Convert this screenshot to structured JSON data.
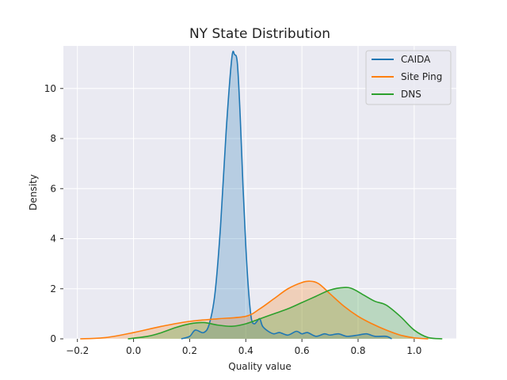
{
  "chart_data": {
    "type": "area",
    "title": "NY State Distribution",
    "xlabel": "Quality value",
    "ylabel": "Density",
    "xlim": [
      -0.25,
      1.15
    ],
    "ylim": [
      0,
      11.7
    ],
    "xticks": [
      -0.2,
      0.0,
      0.2,
      0.4,
      0.6,
      0.8,
      1.0
    ],
    "xtick_labels": [
      "−0.2",
      "0.0",
      "0.2",
      "0.4",
      "0.6",
      "0.8",
      "1.0"
    ],
    "yticks": [
      0,
      2,
      4,
      6,
      8,
      10
    ],
    "ytick_labels": [
      "0",
      "2",
      "4",
      "6",
      "8",
      "10"
    ],
    "grid": true,
    "background": "#eaeaf2",
    "legend_position": "top-right",
    "series": [
      {
        "name": "CAIDA",
        "color": "#1f77b4",
        "x": [
          0.17,
          0.2,
          0.22,
          0.25,
          0.27,
          0.29,
          0.31,
          0.33,
          0.35,
          0.36,
          0.37,
          0.38,
          0.39,
          0.4,
          0.41,
          0.42,
          0.43,
          0.44,
          0.45,
          0.46,
          0.48,
          0.5,
          0.52,
          0.55,
          0.58,
          0.6,
          0.62,
          0.65,
          0.68,
          0.7,
          0.73,
          0.76,
          0.8,
          0.83,
          0.86,
          0.9,
          0.92
        ],
        "y": [
          0.0,
          0.1,
          0.35,
          0.25,
          0.6,
          1.8,
          4.5,
          8.3,
          11.2,
          11.35,
          11.0,
          8.9,
          6.1,
          3.7,
          1.9,
          0.8,
          0.6,
          0.7,
          0.8,
          0.5,
          0.3,
          0.2,
          0.25,
          0.15,
          0.3,
          0.2,
          0.25,
          0.1,
          0.2,
          0.15,
          0.2,
          0.1,
          0.15,
          0.2,
          0.1,
          0.1,
          0.0
        ]
      },
      {
        "name": "Site Ping",
        "color": "#ff7f0e",
        "x": [
          -0.19,
          -0.1,
          0.0,
          0.1,
          0.2,
          0.3,
          0.4,
          0.45,
          0.5,
          0.55,
          0.6,
          0.63,
          0.66,
          0.7,
          0.75,
          0.8,
          0.85,
          0.9,
          0.95,
          1.0,
          1.05
        ],
        "y": [
          0.0,
          0.05,
          0.25,
          0.5,
          0.7,
          0.8,
          0.9,
          1.2,
          1.6,
          2.0,
          2.25,
          2.3,
          2.2,
          1.8,
          1.3,
          0.9,
          0.6,
          0.35,
          0.15,
          0.04,
          0.0
        ]
      },
      {
        "name": "DNS",
        "color": "#2ca02c",
        "x": [
          -0.02,
          0.05,
          0.1,
          0.15,
          0.2,
          0.25,
          0.3,
          0.35,
          0.4,
          0.45,
          0.5,
          0.55,
          0.6,
          0.65,
          0.7,
          0.75,
          0.78,
          0.82,
          0.86,
          0.9,
          0.95,
          1.0,
          1.05,
          1.1
        ],
        "y": [
          0.0,
          0.1,
          0.25,
          0.45,
          0.6,
          0.65,
          0.55,
          0.5,
          0.6,
          0.8,
          1.0,
          1.2,
          1.45,
          1.7,
          1.95,
          2.05,
          2.0,
          1.75,
          1.5,
          1.35,
          0.9,
          0.35,
          0.05,
          0.0
        ]
      }
    ]
  }
}
